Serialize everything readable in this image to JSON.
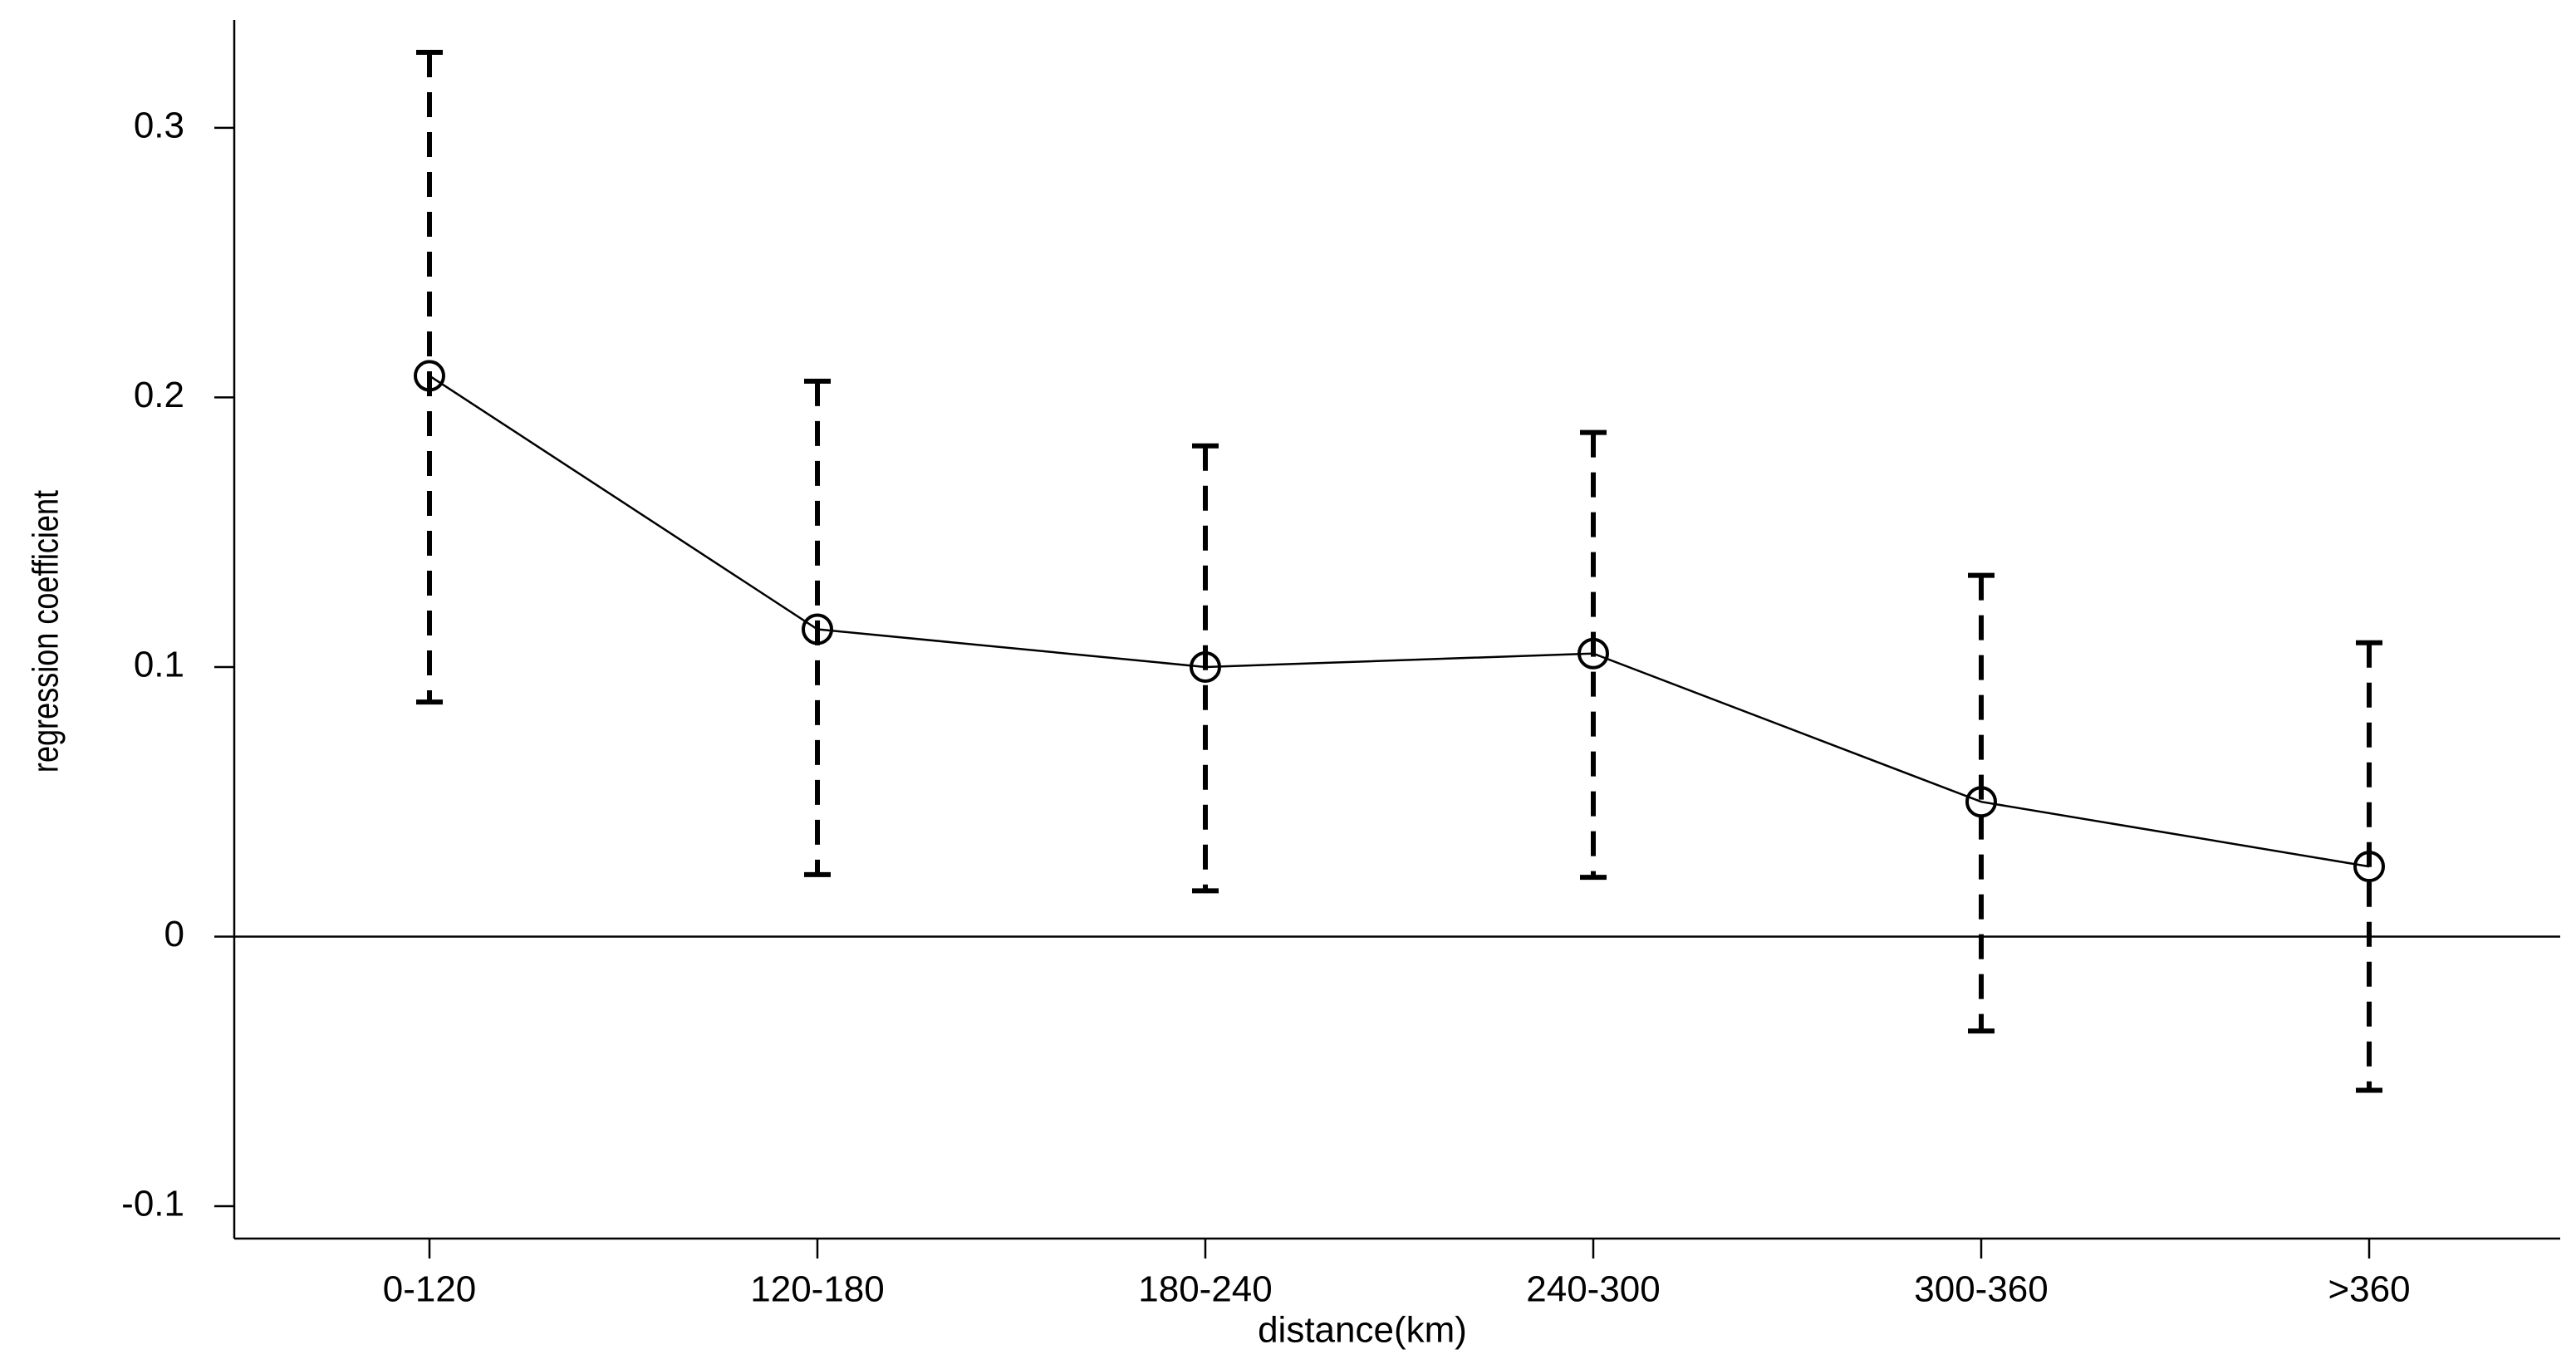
{
  "chart_data": {
    "type": "errorline",
    "x_label": "distance(km)",
    "y_label": "regression coefficient",
    "categories": [
      "0-120",
      "120-180",
      "180-240",
      "240-300",
      "300-360",
      ">360"
    ],
    "values": [
      0.208,
      0.114,
      0.1,
      0.105,
      0.05,
      0.026
    ],
    "lower": [
      0.087,
      0.023,
      0.017,
      0.022,
      -0.035,
      -0.057
    ],
    "upper": [
      0.328,
      0.206,
      0.182,
      0.187,
      0.134,
      0.109
    ],
    "color": "#000000",
    "ylim": [
      -0.112,
      0.34
    ],
    "yticks": [
      -0.1,
      0,
      0.1,
      0.2,
      0.3
    ],
    "reference_line": 0,
    "grid": false
  }
}
